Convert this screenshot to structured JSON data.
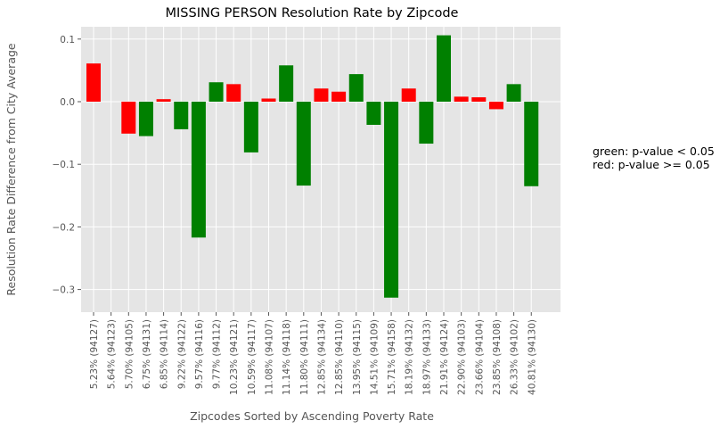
{
  "chart_data": {
    "type": "bar",
    "title": "MISSING PERSON Resolution Rate by Zipcode",
    "xlabel": "Zipcodes Sorted by Ascending Poverty Rate",
    "ylabel": "Resolution Rate Difference from City Average",
    "ylim": [
      -0.335,
      0.125
    ],
    "yticks": [
      0.1,
      0.0,
      -0.1,
      -0.2,
      -0.3
    ],
    "ytick_labels": [
      "0.1",
      "0.0",
      "−0.1",
      "−0.2",
      "−0.3"
    ],
    "grid": true,
    "colors": {
      "significant": "#008000",
      "not_significant": "#ff0000",
      "background": "#e5e5e5",
      "grid": "#ffffff"
    },
    "categories": [
      "5.23%  (94127)",
      "5.64%  (94123)",
      "5.70%  (94105)",
      "6.75%  (94131)",
      "6.85%  (94114)",
      "9.22%  (94122)",
      "9.57%  (94116)",
      "9.77%  (94112)",
      "10.23%  (94121)",
      "10.59%  (94117)",
      "11.08%  (94107)",
      "11.14%  (94118)",
      "11.80%  (94111)",
      "12.85%  (94134)",
      "12.85%  (94110)",
      "13.95%  (94115)",
      "14.51%  (94109)",
      "15.71%  (94158)",
      "18.19%  (94132)",
      "18.97%  (94133)",
      "21.91%  (94124)",
      "22.90%  (94103)",
      "23.66%  (94104)",
      "23.85%  (94108)",
      "26.33%  (94102)",
      "40.81%  (94130)"
    ],
    "values": [
      0.061,
      null,
      -0.051,
      -0.055,
      0.004,
      -0.044,
      -0.217,
      0.031,
      0.028,
      -0.081,
      0.005,
      0.058,
      -0.134,
      0.021,
      0.016,
      0.044,
      -0.037,
      -0.313,
      0.021,
      -0.067,
      0.106,
      0.008,
      0.007,
      -0.012,
      0.028,
      -0.135
    ],
    "significance": [
      "red",
      null,
      "red",
      "green",
      "red",
      "green",
      "green",
      "green",
      "red",
      "green",
      "red",
      "green",
      "green",
      "red",
      "red",
      "green",
      "green",
      "green",
      "red",
      "green",
      "green",
      "red",
      "red",
      "red",
      "green",
      "green"
    ]
  },
  "annotation": {
    "line1": "green: p-value < 0.05",
    "line2": "red: p-value >= 0.05"
  }
}
